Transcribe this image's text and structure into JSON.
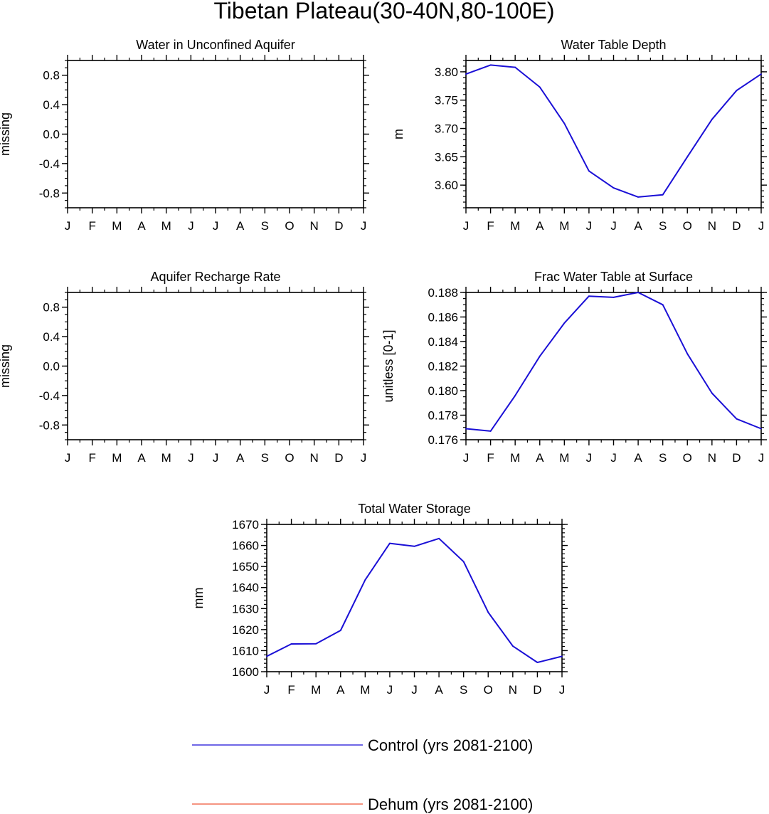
{
  "figure_title": "Tibetan Plateau(30-40N,80-100E)",
  "month_labels": [
    "J",
    "F",
    "M",
    "A",
    "M",
    "J",
    "J",
    "A",
    "S",
    "O",
    "N",
    "D",
    "J"
  ],
  "colors": {
    "control": "#1a0fd6",
    "dehum": "#ef5638",
    "axis": "#000000"
  },
  "legend": {
    "control_label": "Control (yrs 2081-2100)",
    "dehum_label": "Dehum (yrs 2081-2100)"
  },
  "chart_data": [
    {
      "type": "line",
      "title": "Water in Unconfined Aquifer",
      "ylabel": "missing",
      "xlabel": "",
      "ylim": [
        -1.0,
        1.0
      ],
      "yticks": [
        -0.8,
        -0.4,
        0.0,
        0.4,
        0.8
      ],
      "ytick_labels": [
        "-0.8",
        "-0.4",
        "0.0",
        "0.4",
        "0.8"
      ],
      "yminor_step": 0.1,
      "series": []
    },
    {
      "type": "line",
      "title": "Water Table Depth",
      "ylabel": "m",
      "xlabel": "",
      "ylim": [
        3.56,
        3.82
      ],
      "yticks": [
        3.6,
        3.65,
        3.7,
        3.75,
        3.8
      ],
      "ytick_labels": [
        "3.60",
        "3.65",
        "3.70",
        "3.75",
        "3.80"
      ],
      "yminor_step": 0.01,
      "series": [
        {
          "name": "Control (yrs 2081-2100)",
          "values": [
            3.796,
            3.812,
            3.808,
            3.773,
            3.709,
            3.625,
            3.595,
            3.579,
            3.583,
            3.65,
            3.716,
            3.767,
            3.796
          ]
        }
      ]
    },
    {
      "type": "line",
      "title": "Aquifer Recharge Rate",
      "ylabel": "missing",
      "xlabel": "",
      "ylim": [
        -1.0,
        1.0
      ],
      "yticks": [
        -0.8,
        -0.4,
        0.0,
        0.4,
        0.8
      ],
      "ytick_labels": [
        "-0.8",
        "-0.4",
        "0.0",
        "0.4",
        "0.8"
      ],
      "yminor_step": 0.1,
      "series": []
    },
    {
      "type": "line",
      "title": "Frac Water Table at Surface",
      "ylabel": "unitless [0-1]",
      "xlabel": "",
      "ylim": [
        0.176,
        0.188
      ],
      "yticks": [
        0.176,
        0.178,
        0.18,
        0.182,
        0.184,
        0.186,
        0.188
      ],
      "ytick_labels": [
        "0.176",
        "0.178",
        "0.180",
        "0.182",
        "0.184",
        "0.186",
        "0.188"
      ],
      "yminor_step": 0.0005,
      "series": [
        {
          "name": "Control (yrs 2081-2100)",
          "values": [
            0.1769,
            0.1767,
            0.1796,
            0.1828,
            0.1855,
            0.1877,
            0.1876,
            0.188,
            0.187,
            0.183,
            0.1798,
            0.1777,
            0.1769
          ]
        }
      ]
    },
    {
      "type": "line",
      "title": "Total Water Storage",
      "ylabel": "mm",
      "xlabel": "",
      "ylim": [
        1600,
        1670
      ],
      "yticks": [
        1600,
        1610,
        1620,
        1630,
        1640,
        1650,
        1660,
        1670
      ],
      "ytick_labels": [
        "1600",
        "1610",
        "1620",
        "1630",
        "1640",
        "1650",
        "1660",
        "1670"
      ],
      "yminor_step": 2,
      "series": [
        {
          "name": "Control (yrs 2081-2100)",
          "values": [
            1607.3,
            1613.2,
            1613.3,
            1619.6,
            1643.6,
            1661.0,
            1659.6,
            1663.3,
            1652.3,
            1628.2,
            1612.2,
            1604.4,
            1607.3
          ]
        }
      ]
    }
  ]
}
